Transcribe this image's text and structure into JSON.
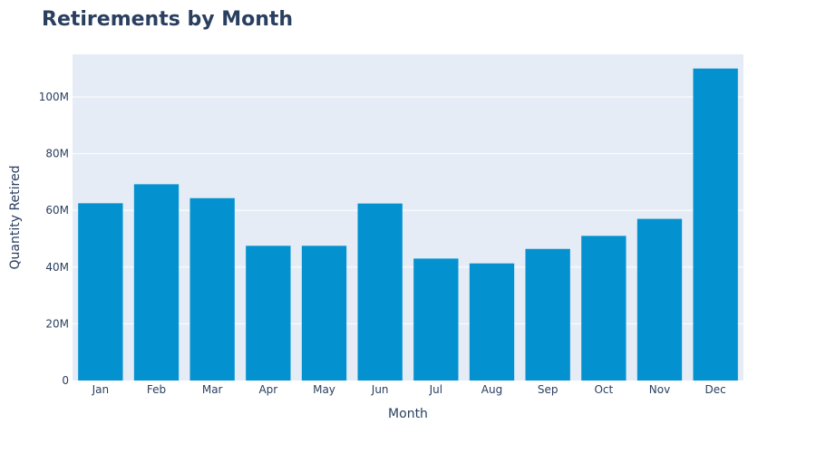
{
  "chart_data": {
    "type": "bar",
    "title": "Retirements by Month",
    "xlabel": "Month",
    "ylabel": "Quantity Retired",
    "categories": [
      "Jan",
      "Feb",
      "Mar",
      "Apr",
      "May",
      "Jun",
      "Jul",
      "Aug",
      "Sep",
      "Oct",
      "Nov",
      "Dec"
    ],
    "values": [
      62500000,
      69200000,
      64300000,
      47500000,
      47500000,
      62400000,
      43000000,
      41300000,
      46400000,
      51000000,
      57000000,
      110000000
    ],
    "ylim": [
      0,
      115000000
    ],
    "yticks": [
      0,
      20000000,
      40000000,
      60000000,
      80000000,
      100000000
    ],
    "ytick_labels": [
      "0",
      "20M",
      "40M",
      "60M",
      "80M",
      "100M"
    ],
    "grid": true,
    "colors": {
      "bar": "#0392cf",
      "plot_background": "#e5ecf6",
      "gridline": "#ffffff",
      "text": "#2a3f5f"
    }
  }
}
